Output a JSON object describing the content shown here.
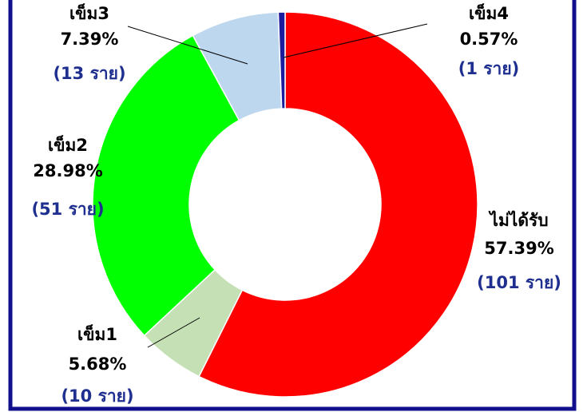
{
  "chart_data": {
    "type": "donut",
    "categories": [
      "ไม่ได้รับ",
      "เข็ม1",
      "เข็ม2",
      "เข็ม3",
      "เข็ม4"
    ],
    "values": [
      57.39,
      5.68,
      28.98,
      7.39,
      0.57
    ],
    "value_labels": [
      "57.39%",
      "5.68%",
      "28.98%",
      "7.39%",
      "0.57%"
    ],
    "counts": [
      101,
      10,
      51,
      13,
      1
    ],
    "count_labels": [
      "(101 ราย)",
      "(10 ราย)",
      "(51 ราย)",
      "(13 ราย)",
      "(1 ราย)"
    ],
    "colors": [
      "#ff0000",
      "#c5e0b4",
      "#00ff00",
      "#bdd7ee",
      "#1c1c9c"
    ]
  }
}
